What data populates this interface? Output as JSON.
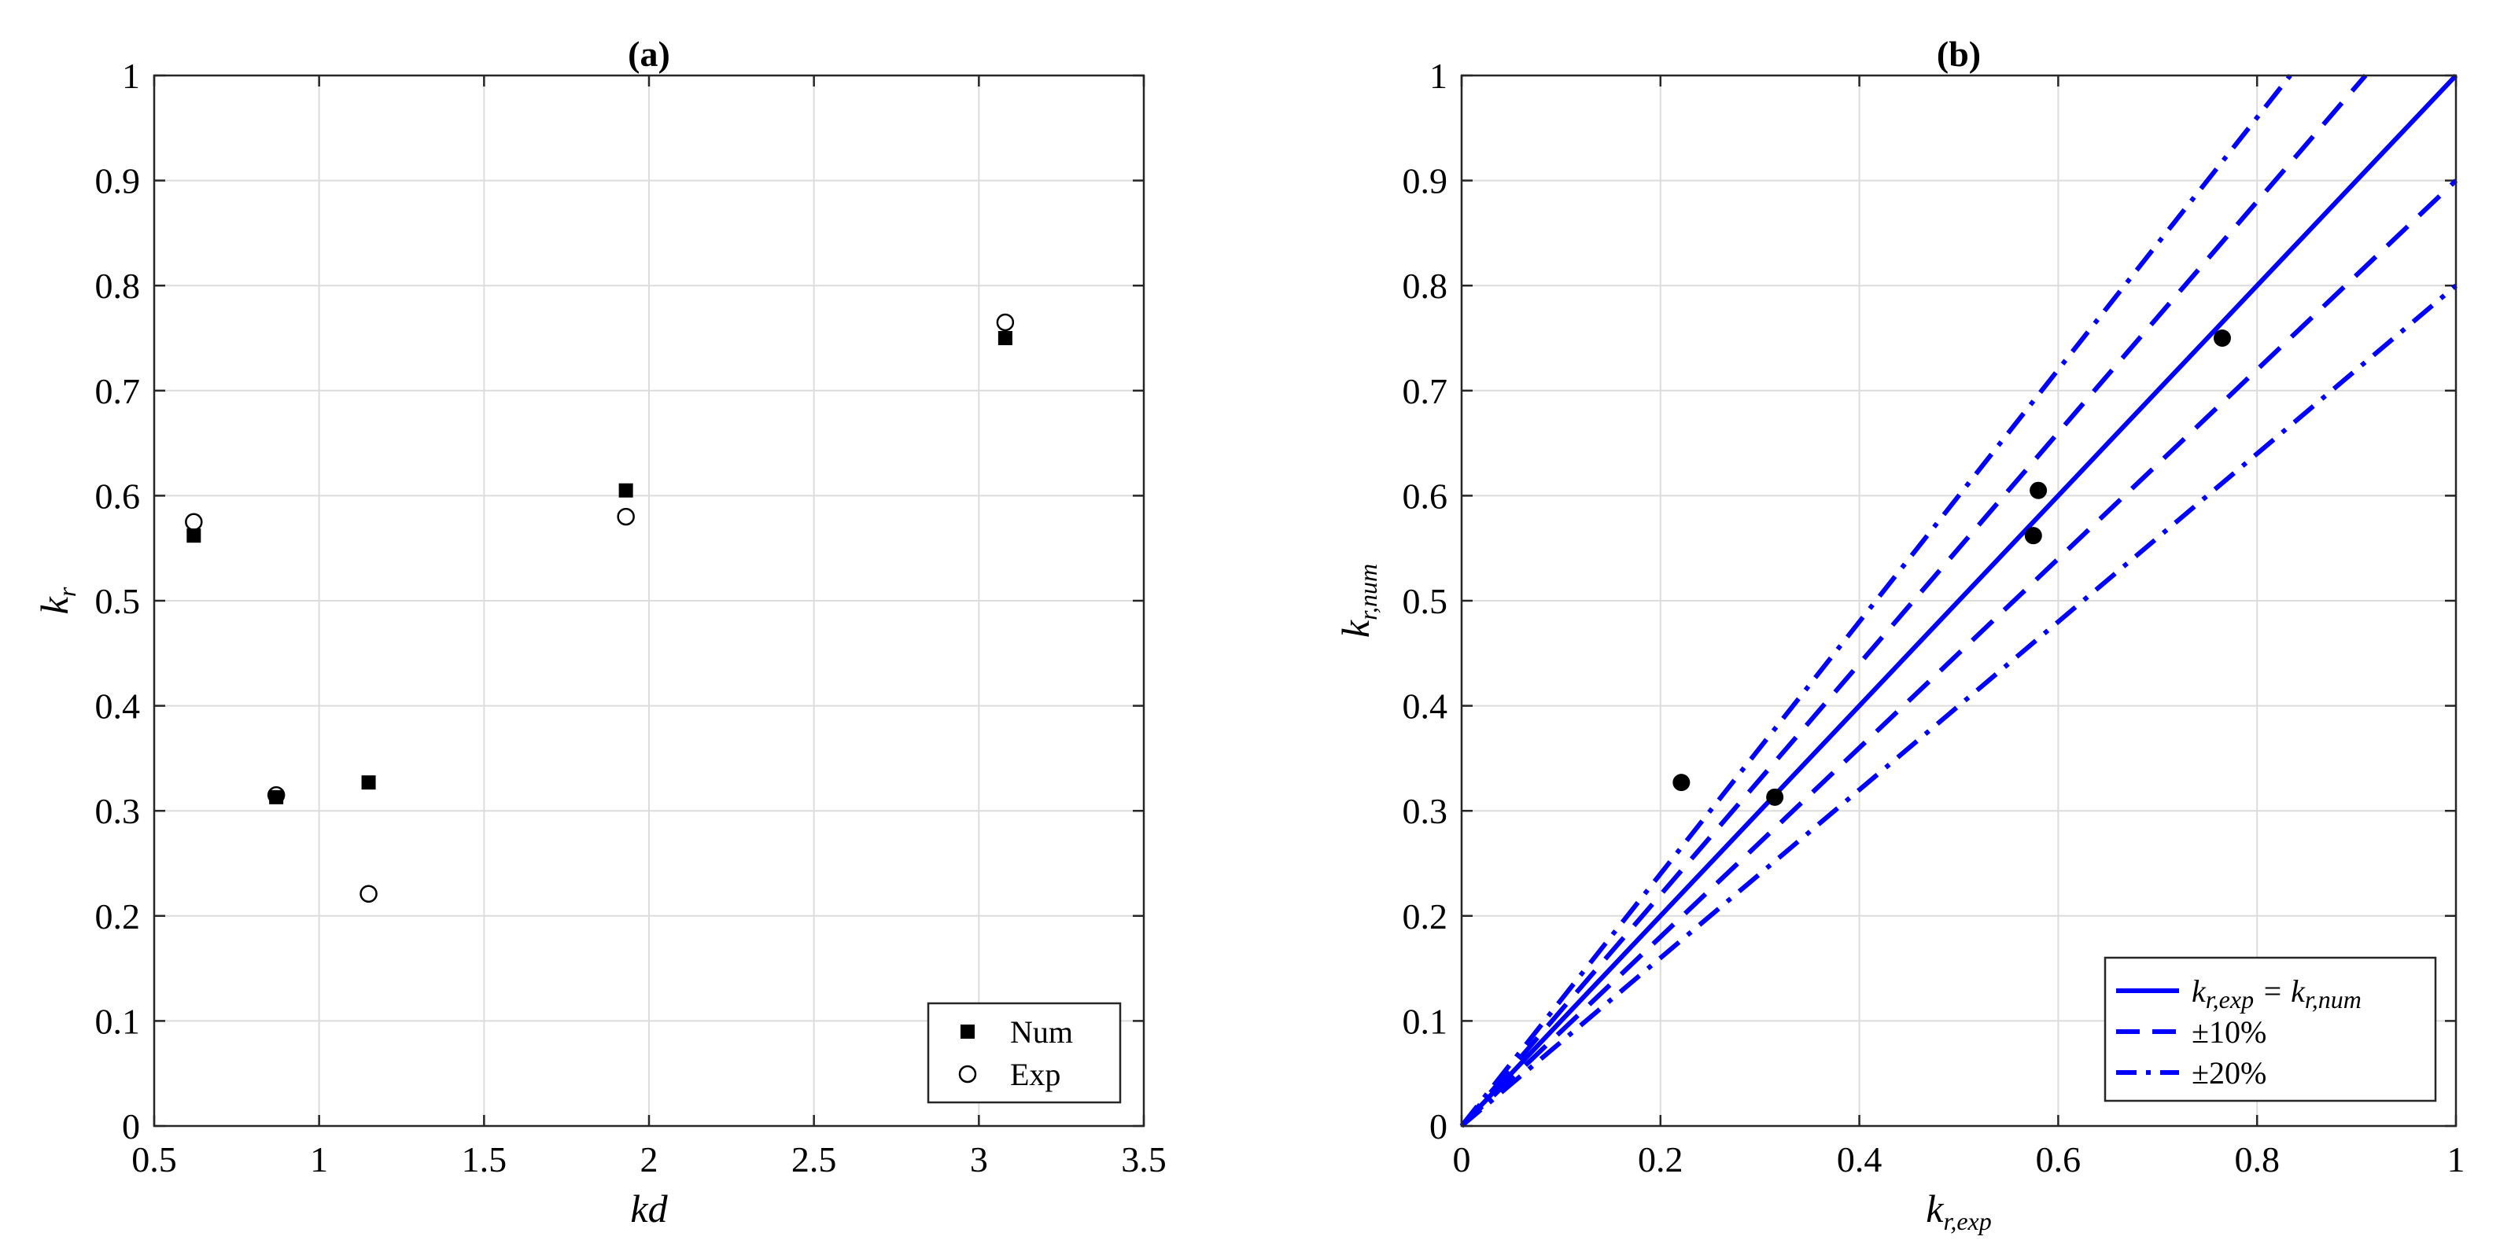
{
  "chart_data": [
    {
      "type": "scatter",
      "title": "(a)",
      "xlabel": "kd",
      "ylabel": "k_r",
      "xlim": [
        0.5,
        3.5
      ],
      "ylim": [
        0,
        1
      ],
      "xticks": [
        "0.5",
        "1",
        "1.5",
        "2",
        "2.5",
        "3",
        "3.5"
      ],
      "xtick_values": [
        0.5,
        1,
        1.5,
        2,
        2.5,
        3,
        3.5
      ],
      "yticks": [
        "0",
        "0.1",
        "0.2",
        "0.3",
        "0.4",
        "0.5",
        "0.6",
        "0.7",
        "0.8",
        "0.9",
        "1"
      ],
      "ytick_values": [
        0,
        0.1,
        0.2,
        0.3,
        0.4,
        0.5,
        0.6,
        0.7,
        0.8,
        0.9,
        1
      ],
      "grid": true,
      "legend_position": "bottom-right",
      "series": [
        {
          "name": "Num",
          "marker": "filled-square",
          "color": "#000000",
          "points": [
            [
              0.62,
              0.562
            ],
            [
              0.87,
              0.313
            ],
            [
              1.15,
              0.327
            ],
            [
              1.93,
              0.605
            ],
            [
              3.08,
              0.75
            ]
          ]
        },
        {
          "name": "Exp",
          "marker": "open-circle",
          "color": "#000000",
          "points": [
            [
              0.62,
              0.575
            ],
            [
              0.87,
              0.315
            ],
            [
              1.15,
              0.221
            ],
            [
              1.93,
              0.58
            ],
            [
              3.08,
              0.765
            ]
          ]
        }
      ]
    },
    {
      "type": "scatter",
      "title": "(b)",
      "xlabel": "k_{r,exp}",
      "ylabel": "k_{r,num}",
      "xlim": [
        0,
        1
      ],
      "ylim": [
        0,
        1
      ],
      "xticks": [
        "0",
        "0.2",
        "0.4",
        "0.6",
        "0.8",
        "1"
      ],
      "xtick_values": [
        0,
        0.2,
        0.4,
        0.6,
        0.8,
        1
      ],
      "yticks": [
        "0",
        "0.1",
        "0.2",
        "0.3",
        "0.4",
        "0.5",
        "0.6",
        "0.7",
        "0.8",
        "0.9",
        "1"
      ],
      "ytick_values": [
        0,
        0.1,
        0.2,
        0.3,
        0.4,
        0.5,
        0.6,
        0.7,
        0.8,
        0.9,
        1
      ],
      "grid": true,
      "legend_position": "bottom-right",
      "points": {
        "marker": "filled-circle",
        "color": "#000000",
        "values": [
          [
            0.221,
            0.327
          ],
          [
            0.315,
            0.313
          ],
          [
            0.575,
            0.562
          ],
          [
            0.58,
            0.605
          ],
          [
            0.765,
            0.75
          ]
        ]
      },
      "reference_lines": [
        {
          "legend": "k_{r,exp} = k_{r,num}",
          "style": "solid",
          "color": "#0000ff",
          "slopes": [
            1.0
          ]
        },
        {
          "legend": "±10%",
          "style": "dashed",
          "color": "#0000ff",
          "slopes": [
            1.1,
            0.9
          ]
        },
        {
          "legend": "±20%",
          "style": "dashdot",
          "color": "#0000ff",
          "slopes": [
            1.2,
            0.8
          ]
        }
      ]
    }
  ]
}
